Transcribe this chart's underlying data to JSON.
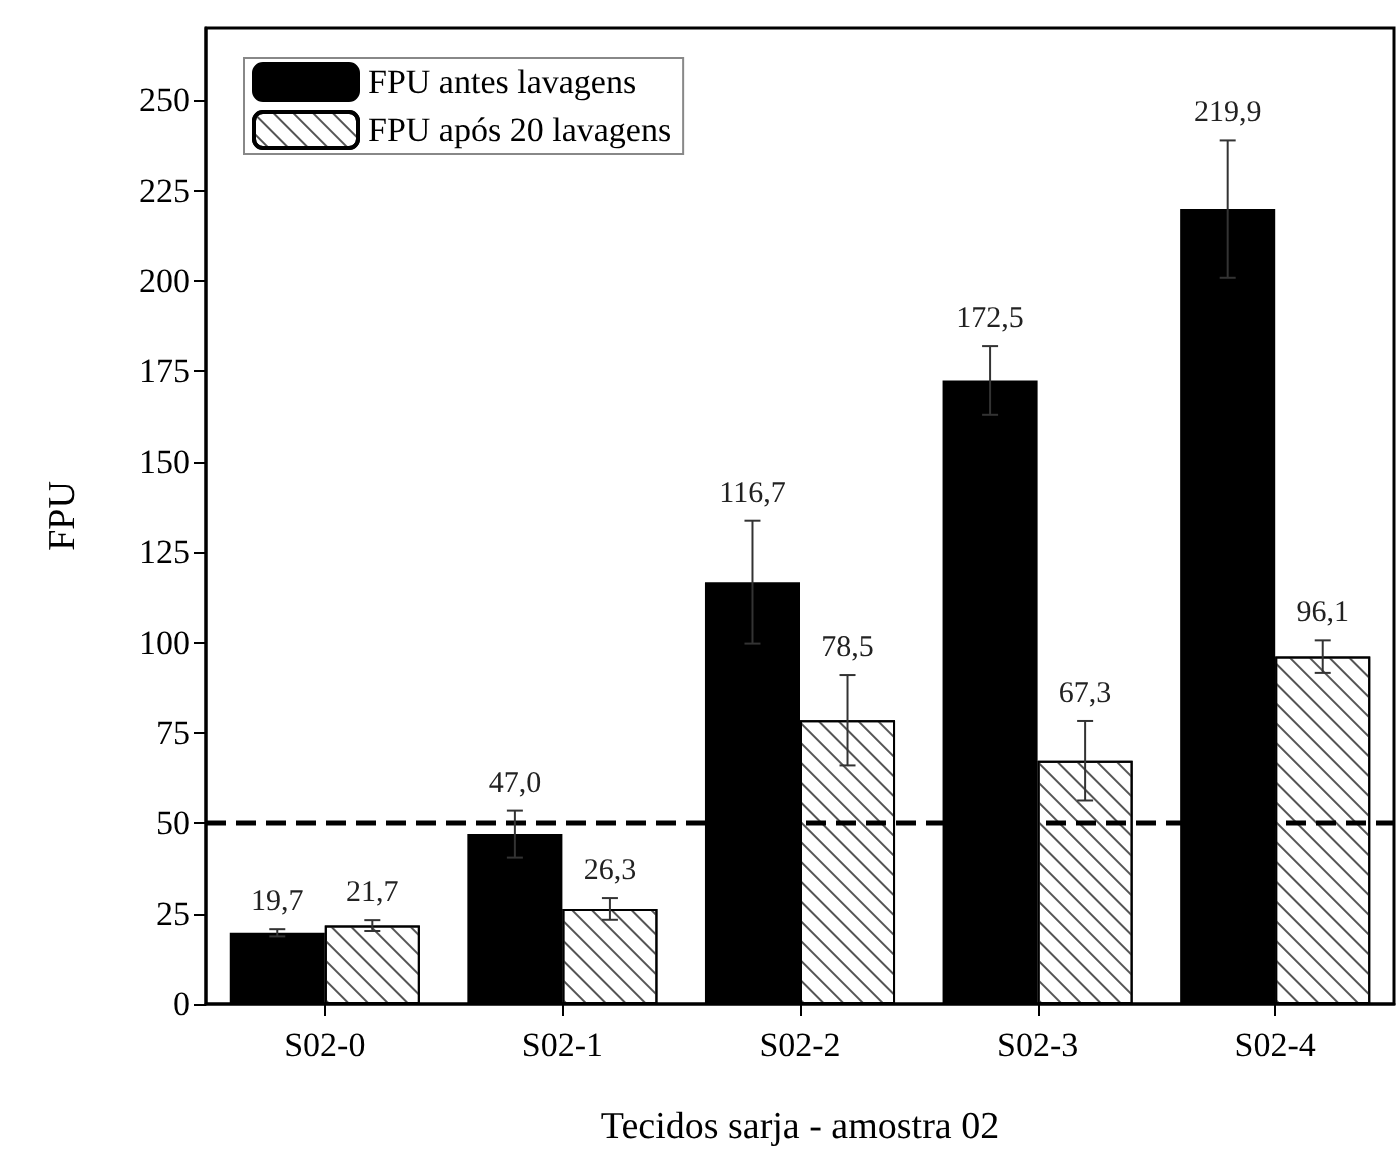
{
  "chart_data": {
    "type": "bar",
    "xlabel": "Tecidos sarja - amostra 02",
    "ylabel": "FPU",
    "categories": [
      "S02-0",
      "S02-1",
      "S02-2",
      "S02-3",
      "S02-4"
    ],
    "series": [
      {
        "name": "FPU antes lavagens",
        "color": "#000000",
        "values": [
          19.7,
          47.0,
          116.7,
          172.5,
          219.9
        ],
        "errors": [
          1,
          6.5,
          17,
          9.5,
          19
        ],
        "value_labels": [
          "19,7",
          "47,0",
          "116,7",
          "172,5",
          "219,9"
        ]
      },
      {
        "name": "FPU após 20 lavagens",
        "color": "#ffffff",
        "values": [
          21.7,
          26.3,
          78.5,
          67.3,
          96.1
        ],
        "errors": [
          1.5,
          3,
          12.5,
          11,
          4.5
        ],
        "value_labels": [
          "21,7",
          "26,3",
          "78,5",
          "67,3",
          "96,1"
        ]
      }
    ],
    "ylim": [
      0,
      270
    ],
    "yticks": [
      0,
      25,
      50,
      75,
      100,
      125,
      150,
      175,
      200,
      225,
      250
    ],
    "ref_lines": [
      {
        "axis": "y",
        "value": 50,
        "color": "#000000",
        "line_style": "dashed"
      }
    ],
    "grid": false,
    "legend": "top left"
  }
}
